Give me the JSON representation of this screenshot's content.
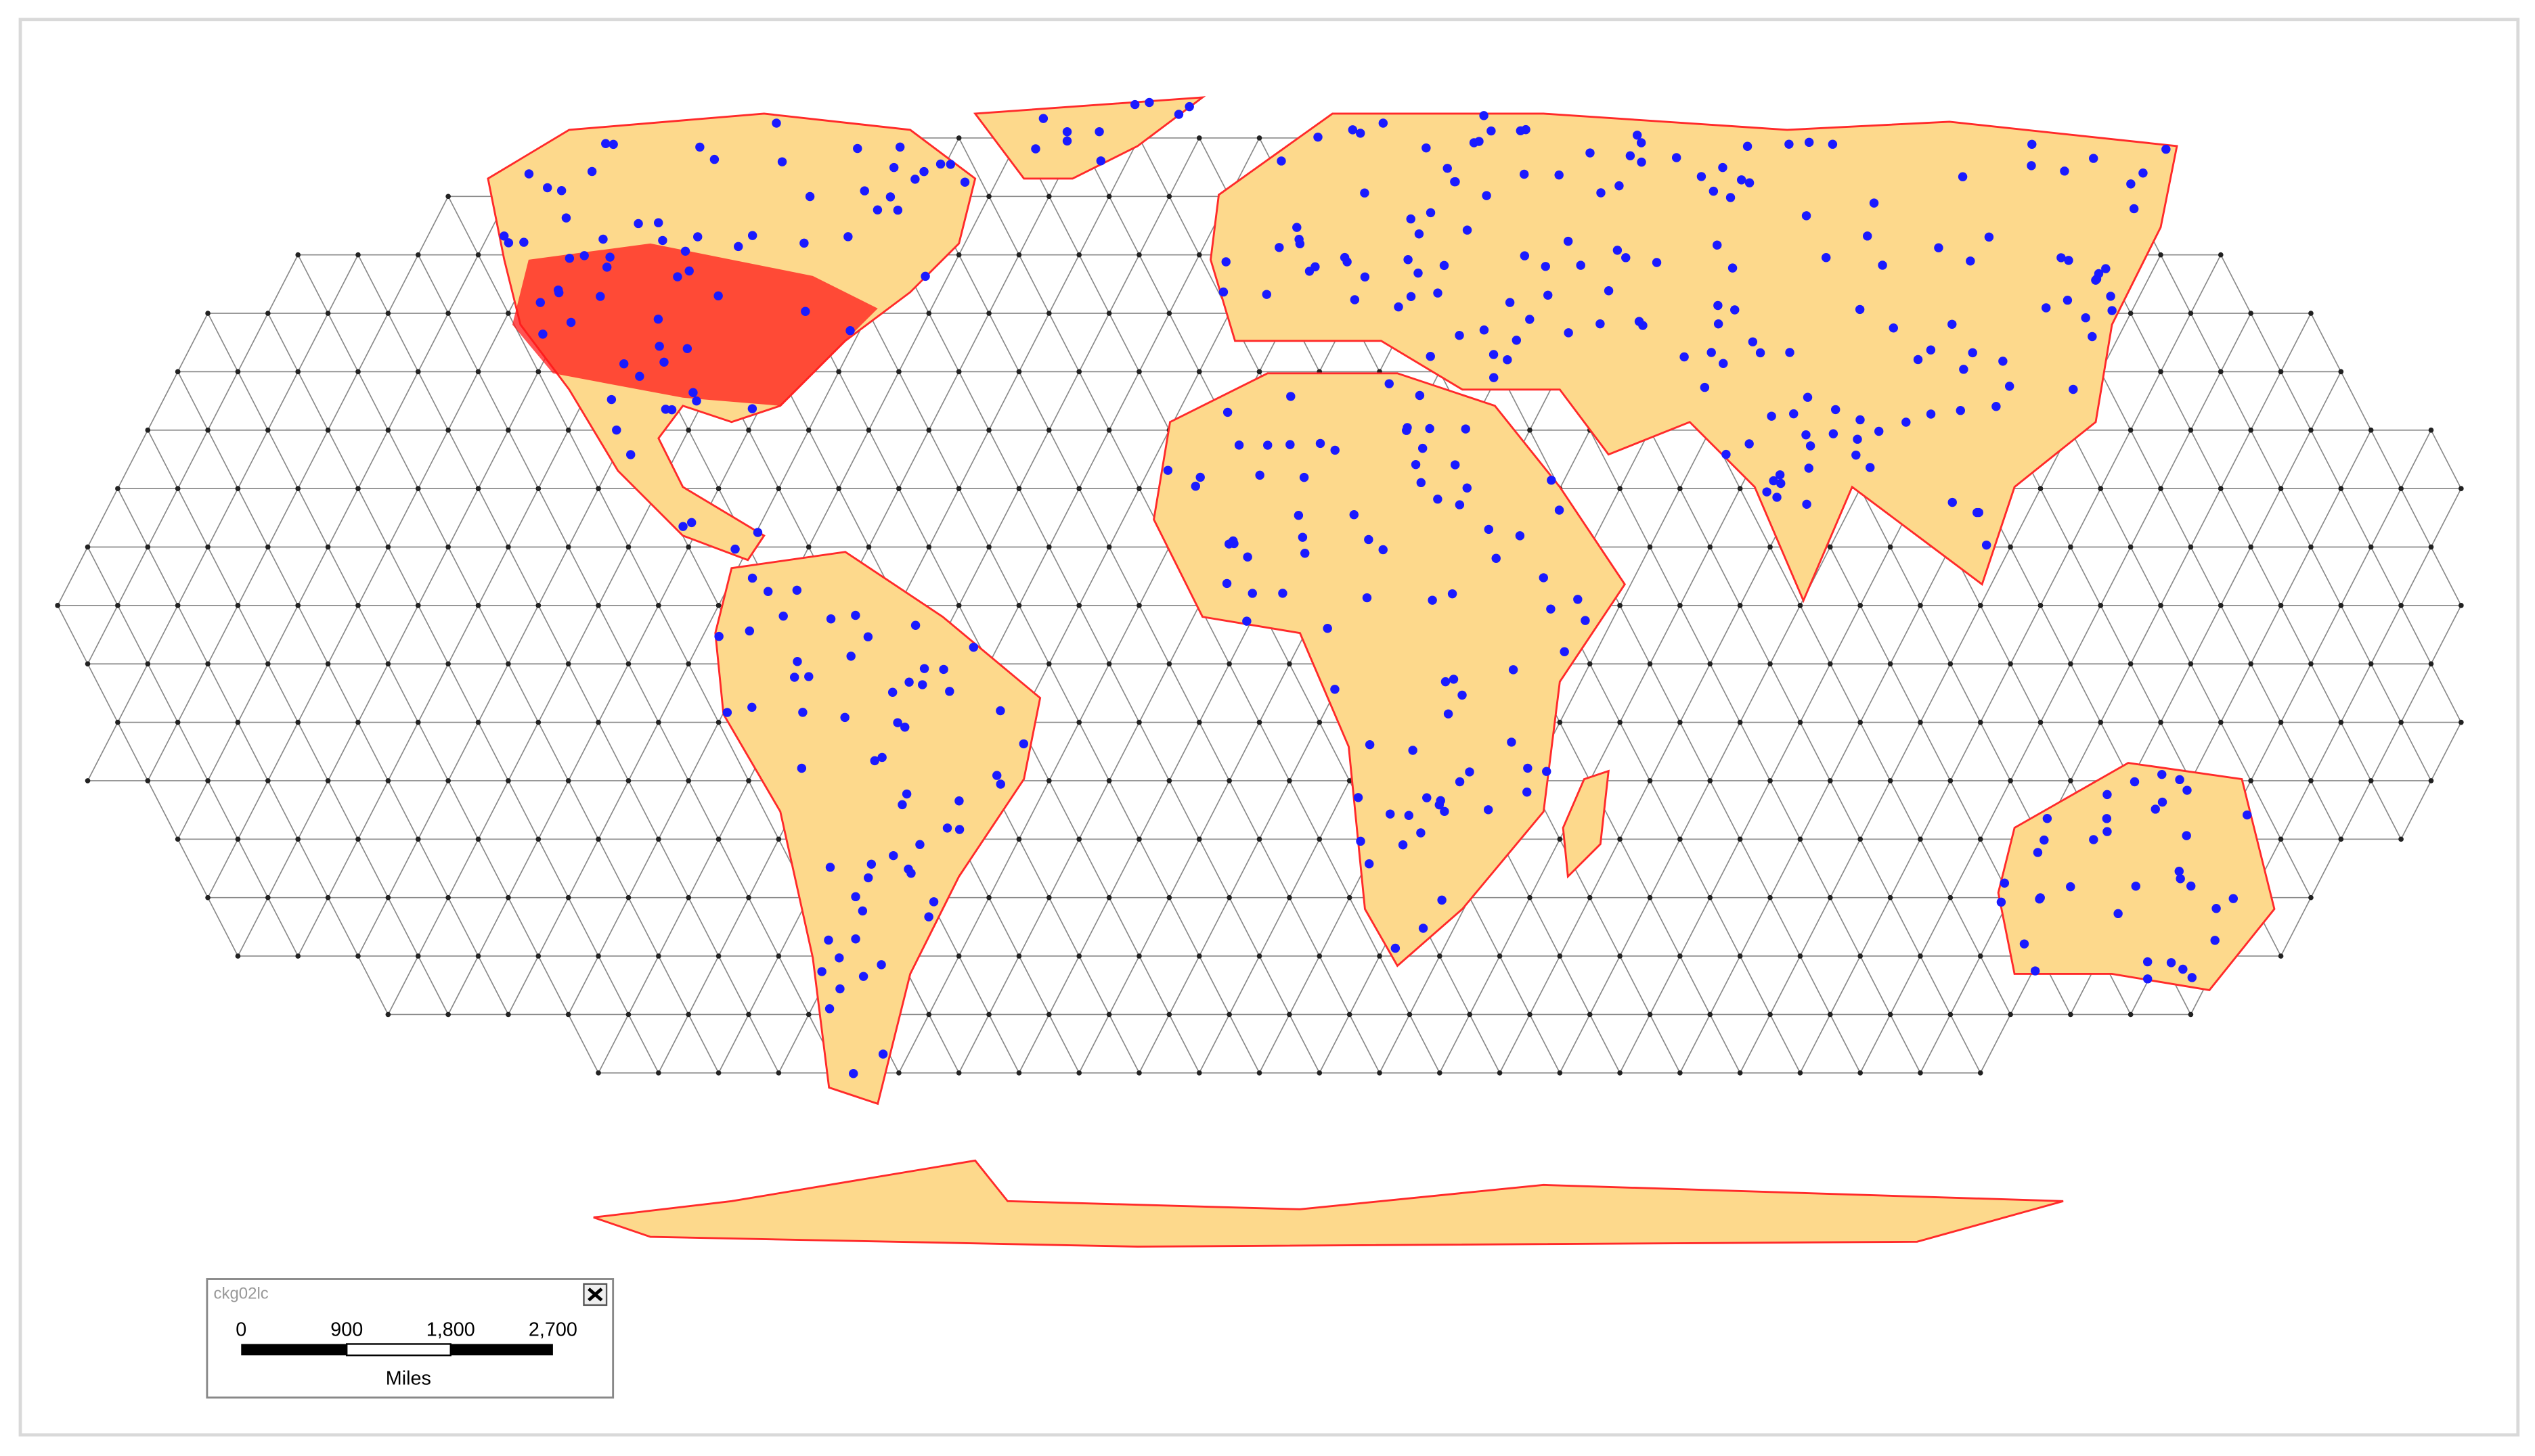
{
  "scale_bar": {
    "title": "ckg02lc",
    "labels": [
      "0",
      "900",
      "1,800",
      "2,700"
    ],
    "unit": "Miles"
  }
}
